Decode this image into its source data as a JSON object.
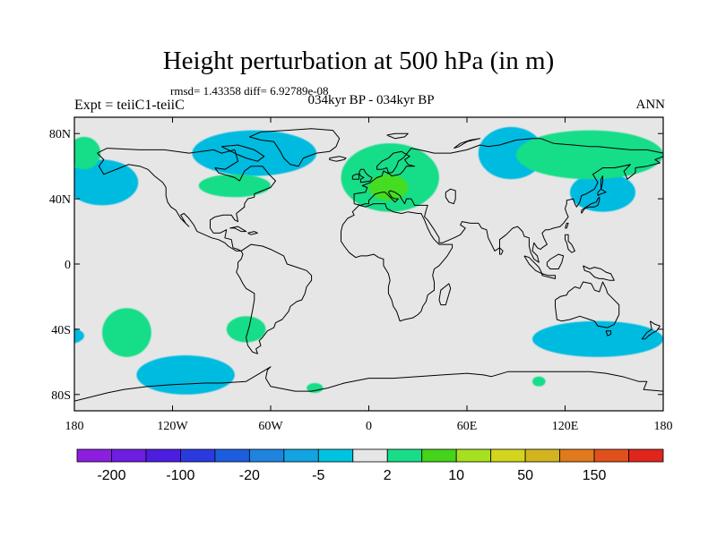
{
  "title": "Height perturbation at 500 hPa (in m)",
  "stats": "rmsd= 1.43358 diff= 6.92789e-08",
  "left_label": "Expt = teiiC1-teiiC",
  "center_label": "034kyr BP - 034kyr BP",
  "right_label": "ANN",
  "map": {
    "lon_range": [
      -180,
      180
    ],
    "lat_range": [
      -90,
      90
    ],
    "x_ticks": [
      "180",
      "120W",
      "60W",
      "0",
      "60E",
      "120E",
      "180"
    ],
    "x_tick_values": [
      -180,
      -120,
      -60,
      0,
      60,
      120,
      180
    ],
    "y_ticks": [
      "80N",
      "40N",
      "0",
      "40S",
      "80S"
    ],
    "y_tick_values": [
      80,
      40,
      0,
      -40,
      -80
    ],
    "background_color": "#e6e6e6",
    "anomaly_regions": [
      {
        "color": "#00bbe0",
        "lon": -163,
        "lat": 50,
        "rlon": 22,
        "rlat": 14
      },
      {
        "color": "#00bbe0",
        "lon": -70,
        "lat": 68,
        "rlon": 38,
        "rlat": 14
      },
      {
        "color": "#00bbe0",
        "lon": 87,
        "lat": 68,
        "rlon": 20,
        "rlat": 16
      },
      {
        "color": "#00bbe0",
        "lon": 143,
        "lat": 44,
        "rlon": 20,
        "rlat": 12
      },
      {
        "color": "#00bbe0",
        "lon": -112,
        "lat": -68,
        "rlon": 30,
        "rlat": 12
      },
      {
        "color": "#00bbe0",
        "lon": 140,
        "lat": -46,
        "rlon": 40,
        "rlat": 11
      },
      {
        "color": "#00bbe0",
        "lon": -184,
        "lat": -44,
        "rlon": 10,
        "rlat": 5
      },
      {
        "color": "#18dd88",
        "lon": 13,
        "lat": 53,
        "rlon": 30,
        "rlat": 21
      },
      {
        "color": "#18dd88",
        "lon": 135,
        "lat": 67,
        "rlon": 45,
        "rlat": 15
      },
      {
        "color": "#18dd88",
        "lon": -174,
        "lat": 68,
        "rlon": 10,
        "rlat": 10
      },
      {
        "color": "#18dd88",
        "lon": -148,
        "lat": -42,
        "rlon": 15,
        "rlat": 15
      },
      {
        "color": "#18dd88",
        "lon": -75,
        "lat": -40,
        "rlon": 12,
        "rlat": 8
      },
      {
        "color": "#18dd88",
        "lon": -82,
        "lat": 48,
        "rlon": 22,
        "rlat": 7
      },
      {
        "color": "#18dd88",
        "lon": -33,
        "lat": -76,
        "rlon": 5,
        "rlat": 3
      },
      {
        "color": "#18dd88",
        "lon": 104,
        "lat": -72,
        "rlon": 4,
        "rlat": 3
      },
      {
        "color": "#44dd22",
        "lon": 12,
        "lat": 47,
        "rlon": 12,
        "rlat": 8
      }
    ]
  },
  "colorbar": {
    "colors": [
      "#8c1ee0",
      "#6d1ee0",
      "#4c1ee0",
      "#2b3ae0",
      "#1d5ee0",
      "#1f84e0",
      "#11a4e0",
      "#00c3e0",
      "#e6e6e6",
      "#18dd88",
      "#44d419",
      "#a6e01e",
      "#d3d41e",
      "#d3b41e",
      "#e07a1d",
      "#e0501d",
      "#e0251d"
    ],
    "labels": [
      "-200",
      "-100",
      "-20",
      "-5",
      "2",
      "10",
      "50",
      "150"
    ]
  }
}
